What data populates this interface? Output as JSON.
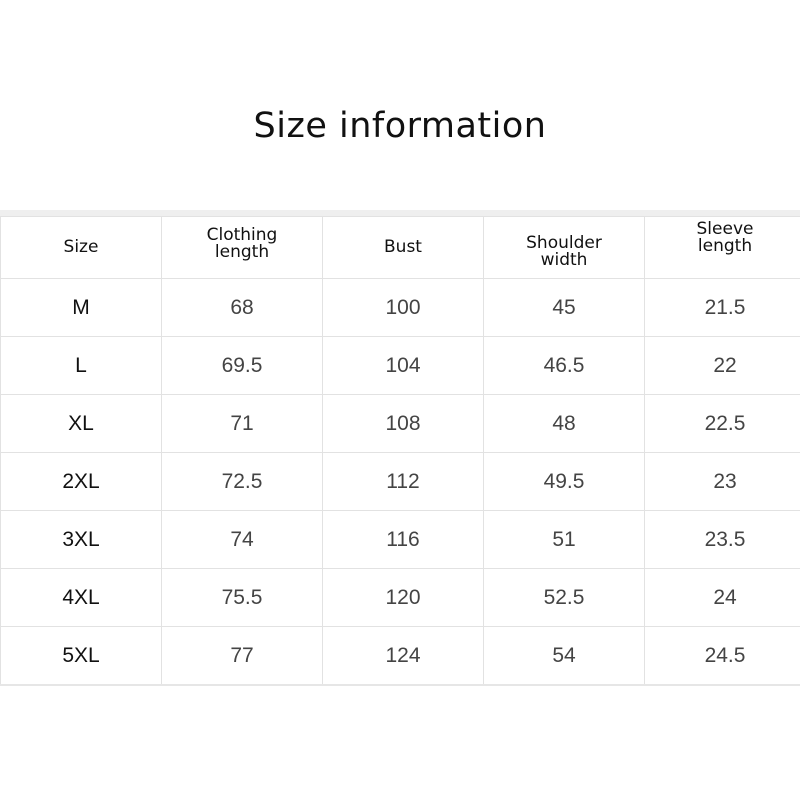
{
  "title": "Size information",
  "table": {
    "headers": [
      "Size",
      "Clothing length",
      "Bust",
      "Shoulder width",
      "Sleeve length"
    ],
    "header_lines": [
      [
        "Size"
      ],
      [
        "Clothing",
        "length"
      ],
      [
        "Bust"
      ],
      [
        "Shoulder",
        "width"
      ],
      [
        "Sleeve",
        "length"
      ]
    ],
    "rows": [
      [
        "M",
        "68",
        "100",
        "45",
        "21.5"
      ],
      [
        "L",
        "69.5",
        "104",
        "46.5",
        "22"
      ],
      [
        "XL",
        "71",
        "108",
        "48",
        "22.5"
      ],
      [
        "2XL",
        "72.5",
        "112",
        "49.5",
        "23"
      ],
      [
        "3XL",
        "74",
        "116",
        "51",
        "23.5"
      ],
      [
        "4XL",
        "75.5",
        "120",
        "52.5",
        "24"
      ],
      [
        "5XL",
        "77",
        "124",
        "54",
        "24.5"
      ]
    ]
  }
}
